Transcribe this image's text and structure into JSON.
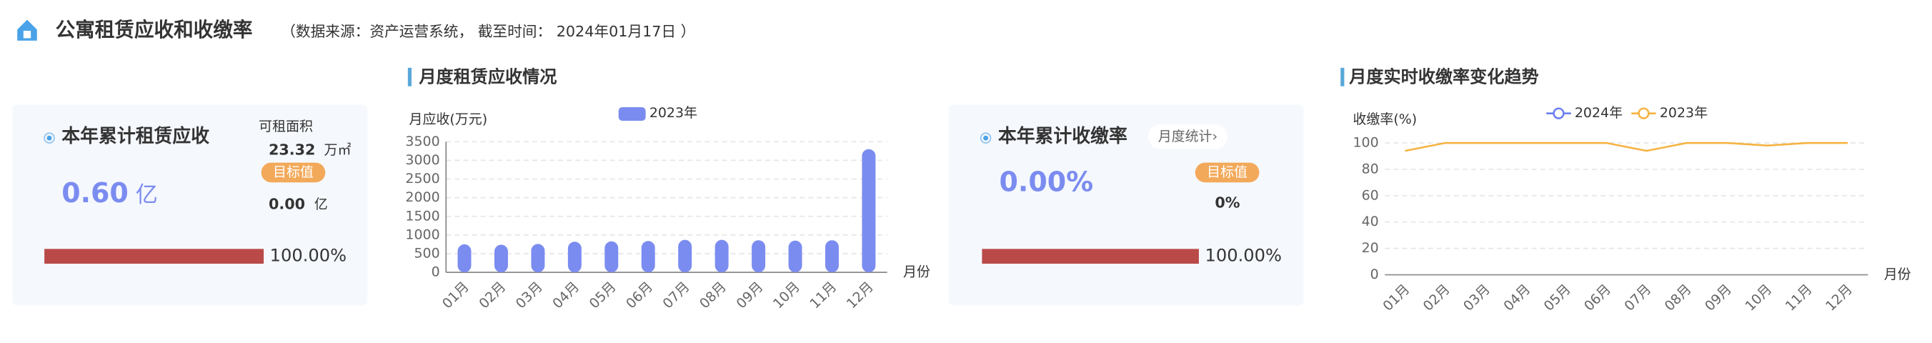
{
  "header": {
    "title": "公寓租赁应收和收缴率",
    "subtitle": "（数据来源：资产运营系统， 截至时间：  2024年01月17日 ）"
  },
  "cards": [
    {
      "title": "本年累计租赁应收",
      "value": "0.60",
      "unit": "亿",
      "area_label": "可租面积",
      "area": "23.32",
      "area_unit": "万㎡",
      "target_label": "目标值",
      "target": "0.00",
      "target_unit": "亿",
      "progress": {
        "value": 100,
        "label": "100.00%"
      }
    },
    {
      "title": "本年累计收缴率",
      "button": "月度统计›",
      "value": "0.00%",
      "target_label": "目标值",
      "target": "0%",
      "progress": {
        "value": 100,
        "label": "100.00%"
      }
    }
  ],
  "chart_data": [
    {
      "type": "bar",
      "title": "月度租赁应收情况",
      "y_label": "月应收(万元)",
      "x_label": "月份",
      "categories": [
        "01月",
        "02月",
        "03月",
        "04月",
        "05月",
        "06月",
        "07月",
        "08月",
        "09月",
        "10月",
        "11月",
        "12月"
      ],
      "series": [
        {
          "name": "2023年",
          "color": "#7b8cf0",
          "values": [
            750,
            740,
            760,
            820,
            830,
            840,
            870,
            870,
            860,
            850,
            860,
            3300
          ]
        }
      ],
      "ylim": [
        0,
        3500
      ],
      "yticks": [
        0,
        500,
        1000,
        1500,
        2000,
        2500,
        3000,
        3500
      ],
      "grid": true
    },
    {
      "type": "line",
      "title": "月度实时收缴率变化趋势",
      "y_label": "收缴率(%)",
      "x_label": "月份",
      "categories": [
        "01月",
        "02月",
        "03月",
        "04月",
        "05月",
        "06月",
        "07月",
        "08月",
        "09月",
        "10月",
        "11月",
        "12月"
      ],
      "series": [
        {
          "name": "2024年",
          "color": "#6b7ff0",
          "values": [
            null,
            null,
            null,
            null,
            null,
            null,
            null,
            null,
            null,
            null,
            null,
            null
          ]
        },
        {
          "name": "2023年",
          "color": "#f5b342",
          "values": [
            94,
            100,
            100,
            100,
            100,
            100,
            94,
            100,
            100,
            98,
            100,
            100
          ]
        }
      ],
      "ylim": [
        0,
        100
      ],
      "yticks": [
        0,
        20,
        40,
        60,
        80,
        100
      ],
      "grid": true
    }
  ]
}
